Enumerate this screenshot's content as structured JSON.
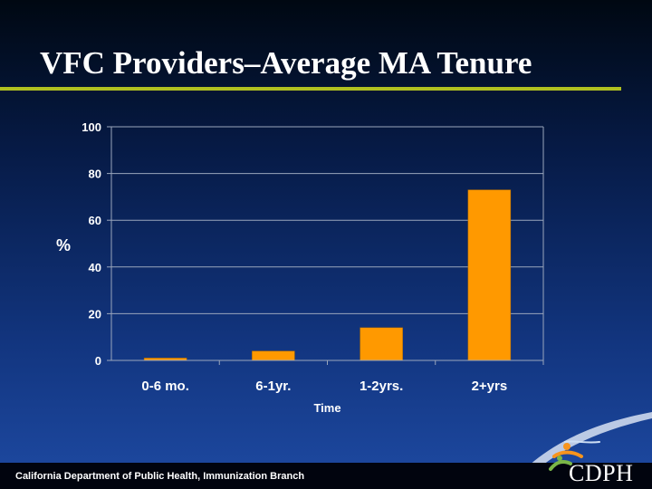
{
  "slide": {
    "title": "VFC Providers–Average MA Tenure",
    "footer": "California Department of Public Health, Immunization Branch",
    "logo": "CDPH"
  },
  "colors": {
    "bar": "#ff9900",
    "grid": "#9aa6bc",
    "title_rule": "#b0c020",
    "text": "#ffffff"
  },
  "icons": [
    "cdph-logo-icon"
  ],
  "chart_data": {
    "type": "bar",
    "categories": [
      "0-6 mo.",
      "6-1yr.",
      "1-2yrs.",
      "2+yrs"
    ],
    "values": [
      1,
      4,
      14,
      73
    ],
    "ylabel": "%",
    "xlabel": "Time",
    "ylim": [
      0,
      100
    ],
    "yticks": [
      0,
      20,
      40,
      60,
      80,
      100
    ],
    "grid": true,
    "legend": "none"
  }
}
